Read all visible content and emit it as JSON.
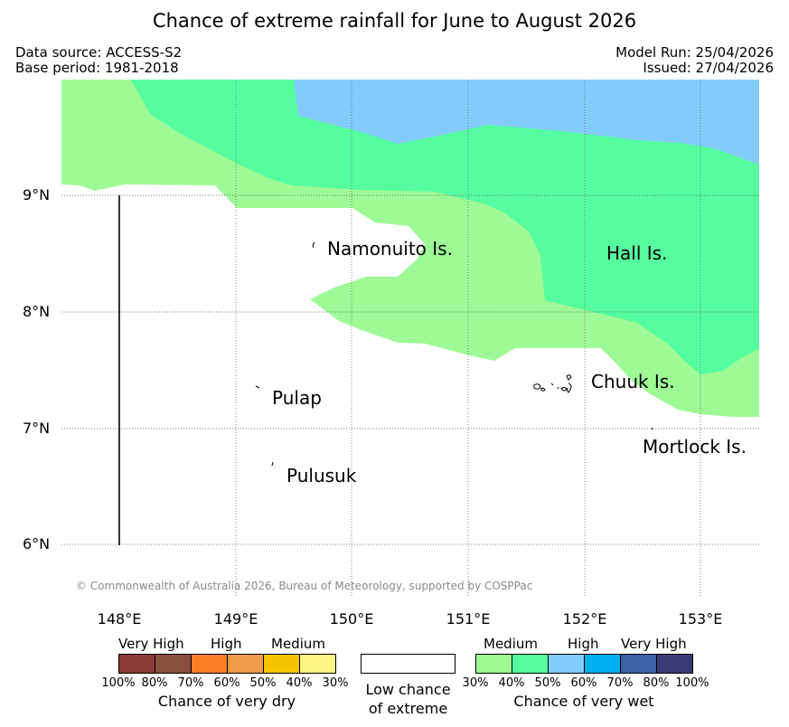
{
  "title": "Chance of extreme rainfall for June to August 2026",
  "meta": {
    "data_source": "Data source: ACCESS-S2",
    "base_period": "Base period: 1981-2018",
    "model_run": "Model Run: 25/04/2026",
    "issued": "Issued: 27/04/2026"
  },
  "map": {
    "latitude_labels": [
      "9°N",
      "8°N",
      "7°N",
      "6°N"
    ],
    "longitude_labels": [
      "148°E",
      "149°E",
      "150°E",
      "151°E",
      "152°E",
      "153°E"
    ],
    "places": [
      "Namonuito Is.",
      "Hall Is.",
      "Chuuk Is.",
      "Pulap",
      "Pulusuk",
      "Mortlock Is."
    ],
    "copyright": "© Commonwealth of Australia 2026, Bureau of Meteorology, supported by COSPPac",
    "region_colors": {
      "wet_medium_30_40": "#9efa96",
      "wet_medium_40_50": "#56fd9f",
      "wet_high_50_60": "#83cbfd"
    }
  },
  "legend": {
    "dry": {
      "headers": [
        "Very High",
        "High",
        "Medium"
      ],
      "colors": [
        "#8b3a34",
        "#8b4f3e",
        "#fd7e25",
        "#ee9c4a",
        "#f2c500",
        "#fff584"
      ],
      "percent_labels": [
        "100%",
        "80%",
        "70%",
        "60%",
        "50%",
        "40%",
        "30%"
      ],
      "caption": "Chance of very dry"
    },
    "low": {
      "line1": "Low chance",
      "line2": "of extreme"
    },
    "wet": {
      "headers": [
        "Medium",
        "High",
        "Very High"
      ],
      "colors": [
        "#9efa96",
        "#56fd9f",
        "#83cbfd",
        "#00b0f0",
        "#3a62a7",
        "#3b3b77"
      ],
      "percent_labels": [
        "30%",
        "40%",
        "50%",
        "60%",
        "70%",
        "80%",
        "100%"
      ],
      "caption": "Chance of very wet"
    }
  }
}
